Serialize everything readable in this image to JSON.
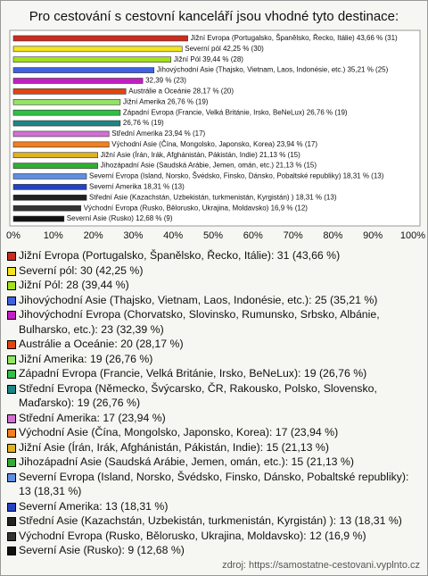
{
  "chart_data": {
    "type": "bar",
    "orientation": "horizontal",
    "title": "Pro cestování s cestovní kanceláří jsou vhodné tyto destinace:",
    "categories": [
      "Jižní Evropa (Portugalsko, Španělsko, Řecko, Itálie): 31 (43,66 %)",
      "Severní pól: 30 (42,25 %)",
      "Jižní Pól: 28 (39,44 %)",
      "Jihovýchodní Asie (Thajsko, Vietnam, Laos, Indonésie, etc.): 25 (35,21 %)",
      "Jihovýchodní Evropa (Chorvatsko, Slovinsko, Rumunsko, Srbsko, Albánie, Bulharsko, etc.): 23 (32,39 %)",
      "Austrálie a Oceánie: 20 (28,17 %)",
      "Jižní Amerika: 19 (26,76 %)",
      "Západní Evropa (Francie, Velká Británie, Irsko, BeNeLux): 19 (26,76 %)",
      "Střední Evropa (Německo, Švýcarsko, ČR, Rakousko, Polsko, Slovensko, Maďarsko): 19 (26,76 %)",
      "Střední Amerika: 17 (23,94 %)",
      "Východní Asie (Čína, Mongolsko, Japonsko, Korea): 17 (23,94 %)",
      "Jižní Asie (Írán, Irák, Afghánistán, Pákistán, Indie): 15 (21,13 %)",
      "Jihozápadní Asie (Saudská Arábie, Jemen, omán, etc.): 15 (21,13 %)",
      "Severní Evropa (Island, Norsko, Švédsko, Finsko, Dánsko, Pobaltské republiky): 13 (18,31 %)",
      "Severní Amerika: 13 (18,31 %)",
      "Střední Asie (Kazachstán, Uzbekistán, turkmenistán, Kyrgistán) ): 13 (18,31 %)",
      "Východní Evropa (Rusko, Bělorusko, Ukrajina, Moldavsko): 12 (16,9 %)",
      "Severní Asie (Rusko): 9 (12,68 %)"
    ],
    "values": [
      43.66,
      42.25,
      39.44,
      35.21,
      32.39,
      28.17,
      26.76,
      26.76,
      26.76,
      23.94,
      23.94,
      21.13,
      21.13,
      18.31,
      18.31,
      18.31,
      16.9,
      12.68
    ],
    "value_labels": [
      "Jižní Evropa (Portugalsko, Španělsko, Řecko, Itálie) 43,66 % (31)",
      "Severní pól 42,25 % (30)",
      "Jižní Pól 39,44 % (28)",
      "Jihovýchodní Asie (Thajsko, Vietnam, Laos, Indonésie, etc.) 35,21 % (25)",
      "32,39 % (23)",
      "Austrálie a Oceánie 28,17 % (20)",
      "Jižní Amerika 26,76 % (19)",
      "Západní Evropa (Francie, Velká Británie, Irsko, BeNeLux) 26,76 % (19)",
      "26,76 % (19)",
      "Střední Amerika 23,94 % (17)",
      "Východní Asie (Čína, Mongolsko, Japonsko, Korea) 23,94 % (17)",
      "Jižní Asie (Írán, Irák, Afghánistán, Pákistán, Indie) 21,13 % (15)",
      "Jihozápadní Asie (Saudská Arábie, Jemen, omán, etc.) 21,13 % (15)",
      "Severní Evropa (Island, Norsko, Švédsko, Finsko, Dánsko, Pobaltské republiky) 18,31 % (13)",
      "Severní Amerika 18,31 % (13)",
      "Střední Asie (Kazachstán, Uzbekistán, turkmenistán, Kyrgistán) ) 18,31 % (13)",
      "Východní Evropa (Rusko, Bělorusko, Ukrajina, Moldavsko) 16,9 % (12)",
      "Severní Asie (Rusko) 12,68 % (9)"
    ],
    "colors": [
      "#cc2a1c",
      "#f2e41e",
      "#a6e01e",
      "#3f62e0",
      "#c21fc2",
      "#e2450f",
      "#92e463",
      "#2fc044",
      "#1f8484",
      "#d36fd3",
      "#f08020",
      "#e0b21e",
      "#2fae32",
      "#5f8fe0",
      "#2343c2",
      "#222222",
      "#333333",
      "#111111"
    ],
    "xlim": [
      0,
      100
    ],
    "xticks": [
      {
        "value": 0,
        "label": "0%"
      },
      {
        "value": 10,
        "label": "10%"
      },
      {
        "value": 20,
        "label": "20%"
      },
      {
        "value": 30,
        "label": "30%"
      },
      {
        "value": 40,
        "label": "40%"
      },
      {
        "value": 50,
        "label": "50%"
      },
      {
        "value": 60,
        "label": "60%"
      },
      {
        "value": 70,
        "label": "70%"
      },
      {
        "value": 80,
        "label": "80%"
      },
      {
        "value": 90,
        "label": "90%"
      },
      {
        "value": 100,
        "label": "100%"
      }
    ],
    "grid": false,
    "source": "zdroj: https://samostatne-cestovani.vyplnto.cz"
  }
}
